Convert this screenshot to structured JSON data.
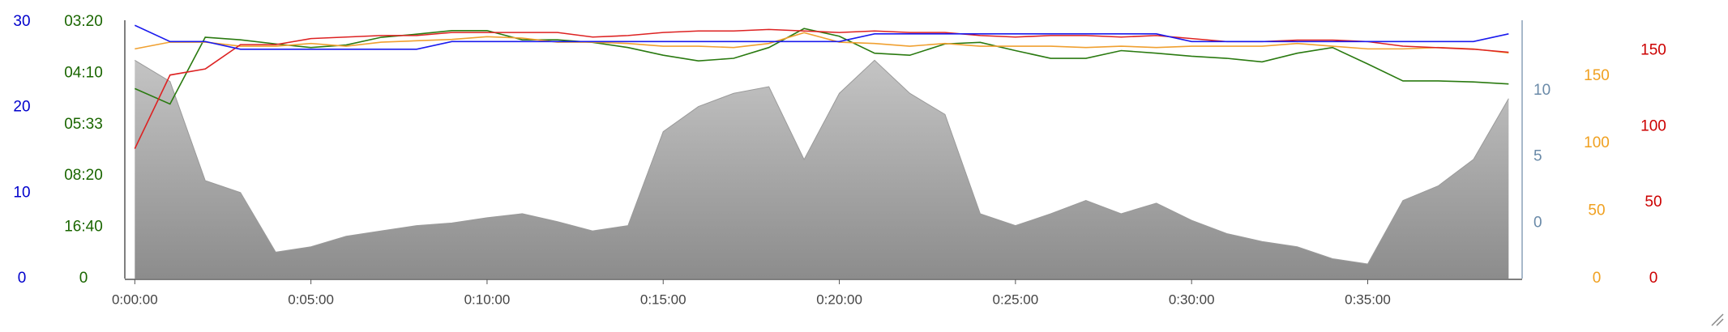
{
  "chart_data": {
    "type": "line",
    "x": [
      0,
      60,
      120,
      180,
      240,
      300,
      360,
      420,
      480,
      540,
      600,
      660,
      720,
      780,
      840,
      900,
      960,
      1020,
      1080,
      1140,
      1200,
      1260,
      1320,
      1380,
      1440,
      1500,
      1560,
      1620,
      1680,
      1740,
      1800,
      1860,
      1920,
      1980,
      2040,
      2100,
      2160,
      2220,
      2280,
      2340
    ],
    "xlim": [
      -17,
      2363
    ],
    "xticks": [
      {
        "value": 0,
        "label": "0:00:00"
      },
      {
        "value": 300,
        "label": "0:05:00"
      },
      {
        "value": 600,
        "label": "0:10:00"
      },
      {
        "value": 900,
        "label": "0:15:00"
      },
      {
        "value": 1200,
        "label": "0:20:00"
      },
      {
        "value": 1500,
        "label": "0:25:00"
      },
      {
        "value": 1800,
        "label": "0:30:00"
      },
      {
        "value": 2100,
        "label": "0:35:00"
      }
    ],
    "y_axes": [
      {
        "color": "#0000cc",
        "ylim": [
          0,
          30
        ],
        "yticks": [
          0,
          10,
          20,
          30
        ]
      },
      {
        "color": "#1a6600",
        "ylim": [
          0,
          5
        ],
        "yticks": [
          0,
          {
            "value": 1,
            "label": "16:40"
          },
          {
            "value": 2,
            "label": "08:20"
          },
          {
            "value": 3,
            "label": "05:33"
          },
          {
            "value": 4,
            "label": "04:10"
          },
          {
            "value": 5,
            "label": "03:20"
          }
        ]
      },
      {
        "color": "#6a8aa8",
        "ylim": [
          -4.2,
          15.2
        ],
        "yticks": [
          0,
          5,
          10
        ]
      },
      {
        "color": "#f0a020",
        "ylim": [
          0,
          190
        ],
        "yticks": [
          0,
          50,
          100,
          150
        ]
      },
      {
        "color": "#cc0000",
        "ylim": [
          0,
          169
        ],
        "yticks": [
          0,
          50,
          100,
          150
        ]
      }
    ],
    "series": [
      {
        "kind": "area",
        "axis": 2,
        "color": "#9a9a9a",
        "values": [
          12.3,
          10.7,
          3.2,
          2.3,
          -2.2,
          -1.8,
          -1,
          -0.6,
          -0.2,
          0,
          0.4,
          0.7,
          0.1,
          -0.6,
          -0.2,
          6.9,
          8.8,
          9.8,
          10.3,
          4.8,
          9.8,
          12.3,
          9.8,
          8.2,
          0.7,
          -0.2,
          0.7,
          1.7,
          0.7,
          1.5,
          0.2,
          -0.8,
          -1.4,
          -1.8,
          -2.7,
          -3.1,
          1.7,
          2.8,
          4.8,
          9.4
        ]
      },
      {
        "kind": "line",
        "axis": 1,
        "color": "#2a7a10",
        "values": [
          3.7,
          3.4,
          4.7,
          4.65,
          4.57,
          4.5,
          4.55,
          4.7,
          4.76,
          4.83,
          4.83,
          4.65,
          4.65,
          4.6,
          4.5,
          4.35,
          4.24,
          4.29,
          4.5,
          4.87,
          4.72,
          4.39,
          4.35,
          4.57,
          4.6,
          4.44,
          4.29,
          4.29,
          4.44,
          4.39,
          4.33,
          4.29,
          4.22,
          4.39,
          4.5,
          4.18,
          3.85,
          3.85,
          3.83,
          3.79
        ]
      },
      {
        "kind": "line",
        "axis": 3,
        "color": "#f0a030",
        "values": [
          170,
          175,
          175,
          172,
          172,
          174,
          172,
          175,
          176,
          177,
          179,
          178,
          175,
          175,
          174,
          172,
          172,
          171,
          174,
          182,
          175,
          174,
          172,
          174,
          172,
          172,
          172,
          171,
          172,
          171,
          172,
          172,
          172,
          174,
          172,
          170,
          170,
          171,
          170,
          167
        ]
      },
      {
        "kind": "line",
        "axis": 4,
        "color": "#dd2222",
        "values": [
          85.5,
          134,
          138,
          154,
          154,
          158,
          159,
          160,
          160,
          162,
          162,
          162,
          162,
          159,
          160,
          162,
          163,
          163,
          164,
          163,
          162,
          163,
          162,
          162,
          160,
          159,
          160,
          160,
          159,
          160,
          158,
          156,
          156,
          157,
          157,
          156,
          153,
          152,
          151,
          149
        ]
      },
      {
        "kind": "line",
        "axis": 0,
        "color": "#1a1aee",
        "values": [
          29.6,
          27.7,
          27.7,
          26.8,
          26.8,
          26.8,
          26.8,
          26.8,
          26.8,
          27.7,
          27.7,
          27.7,
          27.7,
          27.7,
          27.7,
          27.7,
          27.7,
          27.7,
          27.7,
          27.7,
          27.7,
          28.6,
          28.6,
          28.6,
          28.6,
          28.6,
          28.6,
          28.6,
          28.6,
          28.6,
          27.7,
          27.7,
          27.7,
          27.7,
          27.7,
          27.7,
          27.7,
          27.7,
          27.7,
          28.6
        ]
      }
    ]
  }
}
